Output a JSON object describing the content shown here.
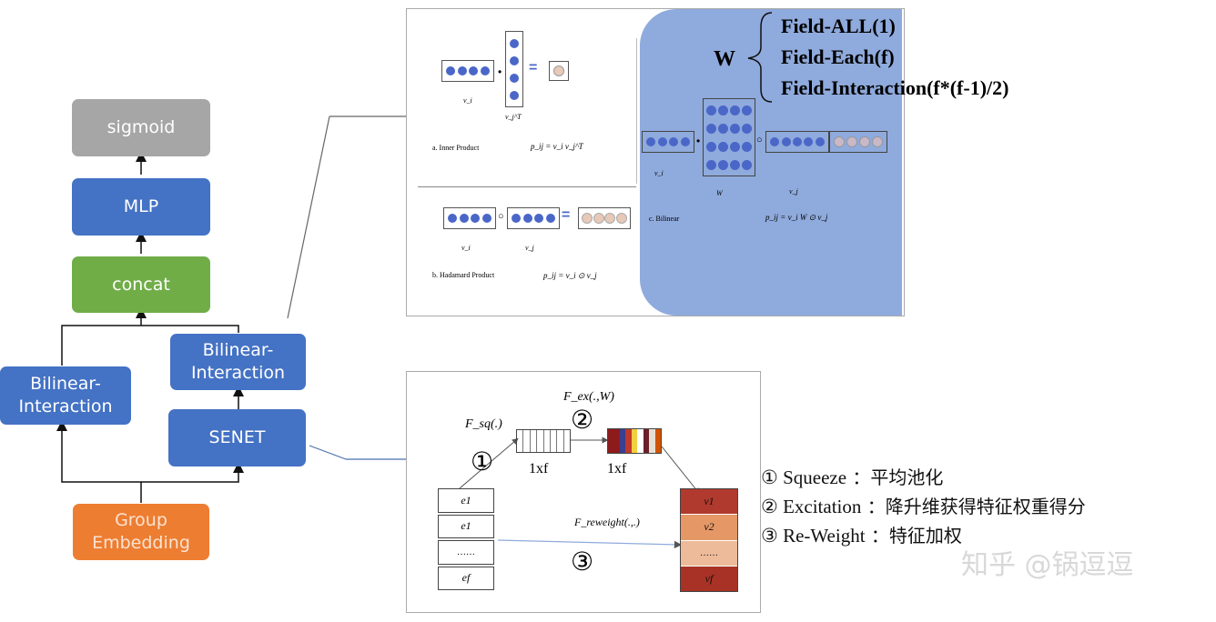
{
  "flow": {
    "sigmoid": "sigmoid",
    "mlp": "MLP",
    "concat": "concat",
    "bilinear_left": "Bilinear-\nInteraction",
    "bilinear_right": "Bilinear-\nInteraction",
    "senet": "SENET",
    "group_embedding": "Group\nEmbedding"
  },
  "bilinear_panel": {
    "w_label": "W",
    "field_types": [
      "Field-ALL(1)",
      "Field-Each(f)",
      "Field-Interaction(f*(f-1)/2)"
    ],
    "inner_product": {
      "caption": "a. Inner Product",
      "formula": "p_ij = v_i v_j^T",
      "vi": "v_i",
      "vj": "v_j^T"
    },
    "hadamard_product": {
      "caption": "b. Hadamard Product",
      "formula": "p_ij = v_i ⊙ v_j",
      "vi": "v_i",
      "vj": "v_j"
    },
    "bilinear": {
      "caption": "c. Bilinear",
      "formula": "p_ij = v_i W ⊙ v_j",
      "vi": "v_i",
      "w": "W",
      "vj": "v_j"
    }
  },
  "senet_panel": {
    "fsq": "F_sq(.)",
    "fex": "F_ex(.,W)",
    "fre": "F_reweight(.,.)",
    "dim1": "1xf",
    "dim2": "1xf",
    "circle1": "①",
    "circle2": "②",
    "circle3": "③",
    "e_items": [
      "e1",
      "e1",
      "……",
      "ef"
    ],
    "v_items": [
      "v1",
      "v2",
      "……",
      "vf"
    ]
  },
  "legend": [
    {
      "num": "①",
      "name": "Squeeze",
      "desc": "平均池化"
    },
    {
      "num": "②",
      "name": "Excitation",
      "desc": "降升维获得特征权重得分"
    },
    {
      "num": "③",
      "name": "Re-Weight",
      "desc": "特征加权"
    }
  ],
  "watermark": "知乎 @锅逗逗",
  "colors": {
    "blue": "#4472c4",
    "green": "#70ad47",
    "gray": "#a6a6a6",
    "orange": "#ed7d31",
    "panel_highlight": "#8faadc",
    "dot_blue": "#4a67c8",
    "reweight_red": "#c0392b"
  }
}
